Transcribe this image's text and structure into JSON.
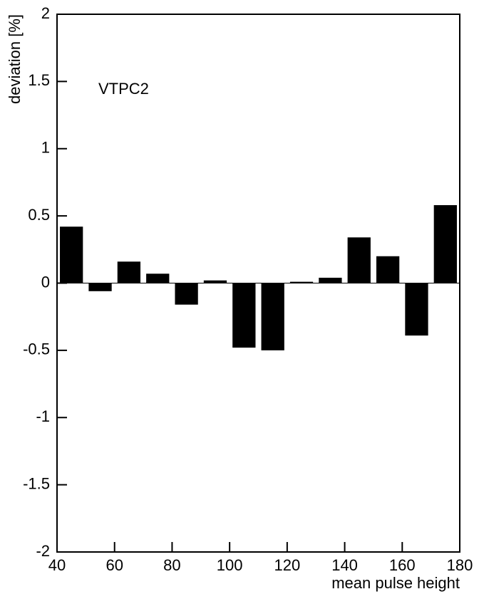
{
  "chart_data": {
    "type": "bar",
    "annotation": "VTPC2",
    "xlabel": "mean pulse height",
    "ylabel": "deviation [%]",
    "x": [
      45,
      55,
      65,
      75,
      85,
      95,
      105,
      115,
      125,
      135,
      145,
      155,
      165,
      175
    ],
    "values": [
      0.42,
      -0.06,
      0.16,
      0.07,
      -0.16,
      0.02,
      -0.48,
      -0.5,
      0.01,
      0.04,
      0.34,
      0.2,
      -0.39,
      0.58
    ],
    "color": "#000000",
    "xlim": [
      40,
      180
    ],
    "xticks": [
      40,
      60,
      80,
      100,
      120,
      140,
      160,
      180
    ],
    "ylim": [
      -2,
      2
    ],
    "yticks": [
      -2,
      -1.5,
      -1,
      -0.5,
      0,
      0.5,
      1,
      1.5,
      2
    ]
  }
}
